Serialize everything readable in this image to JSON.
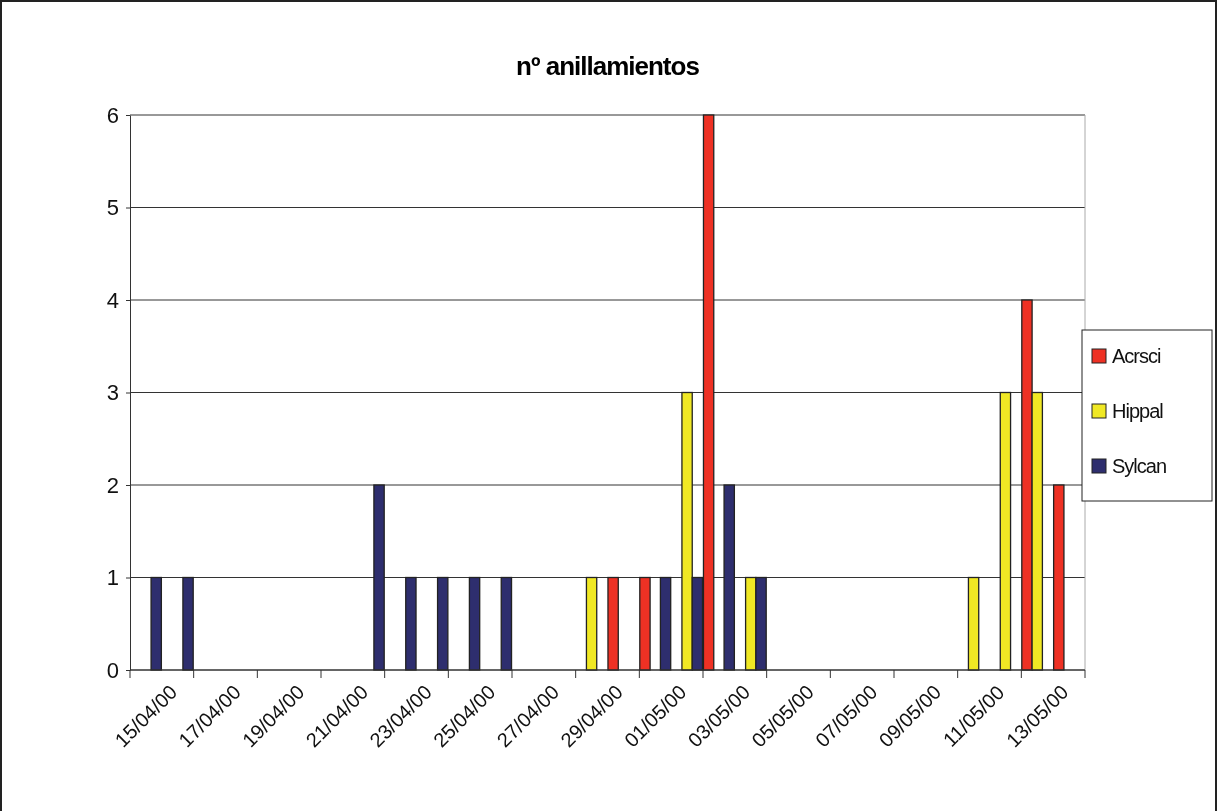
{
  "chart_data": {
    "type": "bar",
    "title": "nº anillamientos",
    "categories": [
      "15/04/00",
      null,
      "17/04/00",
      null,
      "19/04/00",
      null,
      "21/04/00",
      null,
      "23/04/00",
      null,
      "25/04/00",
      null,
      "27/04/00",
      null,
      "29/04/00",
      null,
      "01/05/00",
      null,
      "03/05/00",
      null,
      "05/05/00",
      null,
      "07/05/00",
      null,
      "09/05/00",
      null,
      "11/05/00",
      null,
      "13/05/00",
      null
    ],
    "series": [
      {
        "name": "Acrsci",
        "color": "#ee3124",
        "values": [
          null,
          null,
          null,
          null,
          null,
          null,
          null,
          null,
          null,
          null,
          null,
          null,
          null,
          null,
          null,
          1,
          1,
          null,
          6,
          null,
          null,
          null,
          null,
          null,
          null,
          null,
          null,
          null,
          4,
          2
        ]
      },
      {
        "name": "Hippal",
        "color": "#f0e824",
        "values": [
          null,
          null,
          null,
          null,
          null,
          null,
          null,
          null,
          null,
          null,
          null,
          null,
          null,
          null,
          1,
          null,
          null,
          3,
          null,
          1,
          null,
          null,
          null,
          null,
          null,
          null,
          1,
          3,
          3,
          null
        ]
      },
      {
        "name": "Sylcan",
        "color": "#2e2e6e",
        "values": [
          1,
          1,
          null,
          null,
          null,
          null,
          null,
          2,
          1,
          1,
          1,
          1,
          null,
          null,
          null,
          null,
          1,
          1,
          2,
          1,
          null,
          null,
          null,
          null,
          null,
          null,
          null,
          null,
          null,
          null
        ]
      }
    ],
    "ylim": [
      0,
      6
    ],
    "yticks": [
      0,
      1,
      2,
      3,
      4,
      5,
      6
    ],
    "grid": "y",
    "legend": "right"
  }
}
